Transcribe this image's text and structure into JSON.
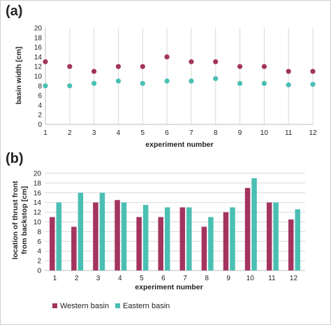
{
  "chart_data": [
    {
      "panel_label": "(a)",
      "type": "scatter",
      "xlabel": "experiment number",
      "ylabel": "basin width [cm]",
      "x": [
        1,
        2,
        3,
        4,
        5,
        6,
        7,
        8,
        9,
        10,
        11,
        12
      ],
      "xlim": [
        1,
        12
      ],
      "ylim": [
        0,
        20
      ],
      "yticks": [
        0,
        2,
        4,
        6,
        8,
        10,
        12,
        14,
        16,
        18,
        20
      ],
      "grid": "vertical",
      "series": [
        {
          "name": "Western basin",
          "color": "#A3345F",
          "values": [
            13,
            12,
            11,
            12,
            12,
            14,
            13,
            13,
            12,
            12,
            11,
            11
          ]
        },
        {
          "name": "Eastern basin",
          "color": "#4BBFB3",
          "values": [
            8,
            8,
            8.5,
            9,
            8.5,
            9,
            9,
            9.5,
            8.5,
            8.5,
            8.2,
            8.3
          ]
        }
      ]
    },
    {
      "panel_label": "(b)",
      "type": "bar",
      "xlabel": "experiment number",
      "ylabel_lines": [
        "location of thrust front",
        "from backstop [cm]"
      ],
      "categories": [
        "1",
        "2",
        "3",
        "4",
        "5",
        "6",
        "7",
        "8",
        "9",
        "10",
        "11",
        "12"
      ],
      "ylim": [
        0,
        20
      ],
      "yticks": [
        0,
        2,
        4,
        6,
        8,
        10,
        12,
        14,
        16,
        18,
        20
      ],
      "grid": "horizontal",
      "legend_position": "bottom",
      "series": [
        {
          "name": "Western basin",
          "color": "#A3345F",
          "values": [
            11,
            9,
            14,
            14.5,
            11,
            11,
            13,
            9,
            12,
            17,
            14,
            10.5
          ]
        },
        {
          "name": "Eastern basin",
          "color": "#4BBFB3",
          "values": [
            14,
            16,
            16,
            14,
            13.5,
            13,
            13,
            11,
            13,
            19,
            14,
            12.6
          ]
        }
      ]
    }
  ]
}
